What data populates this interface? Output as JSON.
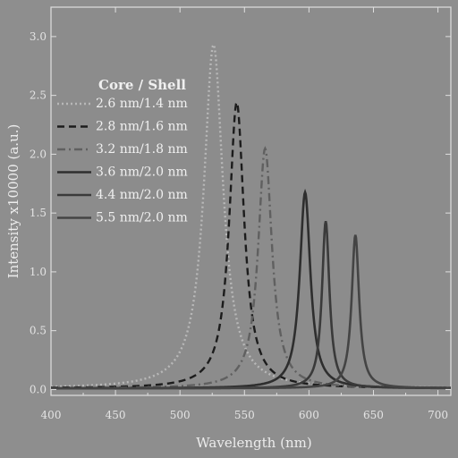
{
  "chart_data": {
    "type": "line",
    "xlabel": "Wavelength (nm)",
    "ylabel": "Intensity x10000 (a.u.)",
    "xlim": [
      400,
      710
    ],
    "ylim": [
      -0.05,
      3.25
    ],
    "x_ticks": [
      400,
      450,
      500,
      550,
      600,
      650,
      700
    ],
    "x_tick_labels": [
      "400",
      "450",
      "500",
      "550",
      "600",
      "650",
      "700"
    ],
    "y_ticks": [
      0.0,
      0.5,
      1.0,
      1.5,
      2.0,
      2.5,
      3.0
    ],
    "y_tick_labels": [
      "0.0",
      "0.5",
      "1.0",
      "1.5",
      "2.0",
      "2.5",
      "3.0"
    ],
    "grid": false,
    "legend_title": "Core   / Shell",
    "legend_position": "upper-left",
    "series": [
      {
        "name": "2.6 nm/1.4 nm",
        "peak_x": 526,
        "peak_y": 2.98,
        "fwhm": 18,
        "style": "dotted",
        "color": "#b8b8b8"
      },
      {
        "name": "2.8 nm/1.6 nm",
        "peak_x": 544,
        "peak_y": 2.48,
        "fwhm": 14,
        "style": "dashed",
        "color": "#1c1c1c"
      },
      {
        "name": "3.2 nm/1.8 nm",
        "peak_x": 566,
        "peak_y": 2.08,
        "fwhm": 13,
        "style": "dashdot",
        "color": "#606060"
      },
      {
        "name": "3.6 nm/2.0 nm",
        "peak_x": 597,
        "peak_y": 1.7,
        "fwhm": 10,
        "style": "solid",
        "color": "#2e2e2e"
      },
      {
        "name": "4.4 nm/2.0 nm",
        "peak_x": 613,
        "peak_y": 1.45,
        "fwhm": 7,
        "style": "solid",
        "color": "#3a3a3a"
      },
      {
        "name": "5.5 nm/2.0 nm",
        "peak_x": 636,
        "peak_y": 1.33,
        "fwhm": 7,
        "style": "solid",
        "color": "#444444"
      }
    ]
  }
}
